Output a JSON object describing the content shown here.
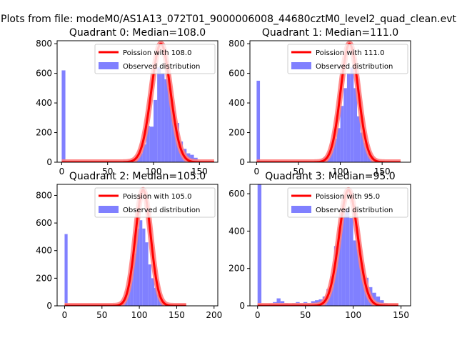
{
  "figure": {
    "suptitle": "Plots from file: modeM0/AS1A13_072T01_9000006008_44680cztM0_level2_quad_clean.evt"
  },
  "colors": {
    "histogram": "#8080ff",
    "poisson_line": "#ff0000",
    "poisson_glow": "#ff8080",
    "axis": "#000000"
  },
  "chart_data": [
    {
      "type": "bar",
      "title": "Quadrant 0: Median=108.0",
      "xlim": [
        -5,
        170
      ],
      "ylim": [
        0,
        820
      ],
      "xticks": [
        0,
        50,
        100,
        150
      ],
      "yticks": [
        0,
        200,
        400,
        600,
        800
      ],
      "legend": [
        "Poission with 108.0",
        "Observed distribution"
      ],
      "legend_position": "upper-right",
      "poisson_mean": 108.0,
      "poisson_peak": 800,
      "bins": [
        {
          "x0": 0,
          "x1": 4,
          "count": 620
        },
        {
          "x0": 68,
          "x1": 72,
          "count": 10
        },
        {
          "x0": 72,
          "x1": 76,
          "count": 15
        },
        {
          "x0": 76,
          "x1": 80,
          "count": 20
        },
        {
          "x0": 80,
          "x1": 84,
          "count": 30
        },
        {
          "x0": 84,
          "x1": 88,
          "count": 60
        },
        {
          "x0": 88,
          "x1": 92,
          "count": 120
        },
        {
          "x0": 92,
          "x1": 96,
          "count": 245
        },
        {
          "x0": 96,
          "x1": 100,
          "count": 240
        },
        {
          "x0": 100,
          "x1": 104,
          "count": 420
        },
        {
          "x0": 104,
          "x1": 108,
          "count": 640
        },
        {
          "x0": 108,
          "x1": 112,
          "count": 600
        },
        {
          "x0": 112,
          "x1": 116,
          "count": 560
        },
        {
          "x0": 116,
          "x1": 120,
          "count": 500
        },
        {
          "x0": 120,
          "x1": 124,
          "count": 350
        },
        {
          "x0": 124,
          "x1": 128,
          "count": 265
        },
        {
          "x0": 128,
          "x1": 132,
          "count": 140
        },
        {
          "x0": 132,
          "x1": 136,
          "count": 90
        },
        {
          "x0": 136,
          "x1": 140,
          "count": 60
        },
        {
          "x0": 140,
          "x1": 144,
          "count": 50
        },
        {
          "x0": 144,
          "x1": 148,
          "count": 30
        },
        {
          "x0": 148,
          "x1": 152,
          "count": 10
        }
      ]
    },
    {
      "type": "bar",
      "title": "Quadrant 1: Median=111.0",
      "xlim": [
        -8,
        184
      ],
      "ylim": [
        0,
        820
      ],
      "xticks": [
        0,
        50,
        100,
        150
      ],
      "yticks": [
        0,
        200,
        400,
        600,
        800
      ],
      "legend": [
        "Poission with 111.0",
        "Observed distribution"
      ],
      "legend_position": "upper-right",
      "poisson_mean": 111.0,
      "poisson_peak": 800,
      "bins": [
        {
          "x0": 0,
          "x1": 4,
          "count": 550
        },
        {
          "x0": 72,
          "x1": 76,
          "count": 10
        },
        {
          "x0": 76,
          "x1": 80,
          "count": 20
        },
        {
          "x0": 80,
          "x1": 84,
          "count": 35
        },
        {
          "x0": 84,
          "x1": 88,
          "count": 60
        },
        {
          "x0": 88,
          "x1": 92,
          "count": 90
        },
        {
          "x0": 92,
          "x1": 96,
          "count": 160
        },
        {
          "x0": 96,
          "x1": 100,
          "count": 230
        },
        {
          "x0": 100,
          "x1": 104,
          "count": 380
        },
        {
          "x0": 104,
          "x1": 108,
          "count": 500
        },
        {
          "x0": 108,
          "x1": 112,
          "count": 600
        },
        {
          "x0": 112,
          "x1": 116,
          "count": 640
        },
        {
          "x0": 116,
          "x1": 120,
          "count": 500
        },
        {
          "x0": 120,
          "x1": 124,
          "count": 310
        },
        {
          "x0": 124,
          "x1": 128,
          "count": 200
        },
        {
          "x0": 128,
          "x1": 132,
          "count": 130
        },
        {
          "x0": 132,
          "x1": 136,
          "count": 60
        },
        {
          "x0": 136,
          "x1": 140,
          "count": 40
        },
        {
          "x0": 140,
          "x1": 144,
          "count": 20
        },
        {
          "x0": 144,
          "x1": 148,
          "count": 10
        }
      ]
    },
    {
      "type": "bar",
      "title": "Quadrant 2: Median=105.0",
      "xlim": [
        -10,
        205
      ],
      "ylim": [
        0,
        880
      ],
      "xticks": [
        0,
        50,
        100,
        150,
        200
      ],
      "yticks": [
        0,
        200,
        400,
        600,
        800
      ],
      "legend": [
        "Poission with 105.0",
        "Observed distribution"
      ],
      "legend_position": "upper-right",
      "poisson_mean": 105.0,
      "poisson_peak": 840,
      "bins": [
        {
          "x0": 0,
          "x1": 4,
          "count": 520
        },
        {
          "x0": 72,
          "x1": 76,
          "count": 10
        },
        {
          "x0": 76,
          "x1": 80,
          "count": 30
        },
        {
          "x0": 80,
          "x1": 84,
          "count": 80
        },
        {
          "x0": 84,
          "x1": 88,
          "count": 150
        },
        {
          "x0": 88,
          "x1": 92,
          "count": 280
        },
        {
          "x0": 92,
          "x1": 96,
          "count": 380
        },
        {
          "x0": 96,
          "x1": 100,
          "count": 560
        },
        {
          "x0": 100,
          "x1": 104,
          "count": 620
        },
        {
          "x0": 104,
          "x1": 108,
          "count": 560
        },
        {
          "x0": 108,
          "x1": 112,
          "count": 460
        },
        {
          "x0": 112,
          "x1": 116,
          "count": 300
        },
        {
          "x0": 116,
          "x1": 120,
          "count": 200
        },
        {
          "x0": 120,
          "x1": 124,
          "count": 130
        },
        {
          "x0": 124,
          "x1": 128,
          "count": 80
        },
        {
          "x0": 128,
          "x1": 132,
          "count": 40
        },
        {
          "x0": 132,
          "x1": 136,
          "count": 20
        }
      ]
    },
    {
      "type": "bar",
      "title": "Quadrant 3: Median=95.0",
      "xlim": [
        -8,
        160
      ],
      "ylim": [
        0,
        650
      ],
      "xticks": [
        0,
        50,
        100,
        150
      ],
      "yticks": [
        0,
        200,
        400,
        600
      ],
      "legend": [
        "Poission with 95.0",
        "Observed distribution"
      ],
      "legend_position": "upper-right",
      "poisson_mean": 95.0,
      "poisson_peak": 620,
      "bins": [
        {
          "x0": 0,
          "x1": 4,
          "count": 650
        },
        {
          "x0": 12,
          "x1": 16,
          "count": 10
        },
        {
          "x0": 16,
          "x1": 20,
          "count": 20
        },
        {
          "x0": 20,
          "x1": 24,
          "count": 40
        },
        {
          "x0": 24,
          "x1": 28,
          "count": 25
        },
        {
          "x0": 28,
          "x1": 32,
          "count": 15
        },
        {
          "x0": 32,
          "x1": 36,
          "count": 10
        },
        {
          "x0": 36,
          "x1": 40,
          "count": 15
        },
        {
          "x0": 40,
          "x1": 44,
          "count": 20
        },
        {
          "x0": 44,
          "x1": 48,
          "count": 15
        },
        {
          "x0": 48,
          "x1": 52,
          "count": 20
        },
        {
          "x0": 52,
          "x1": 56,
          "count": 15
        },
        {
          "x0": 56,
          "x1": 60,
          "count": 25
        },
        {
          "x0": 60,
          "x1": 64,
          "count": 30
        },
        {
          "x0": 64,
          "x1": 68,
          "count": 35
        },
        {
          "x0": 68,
          "x1": 72,
          "count": 50
        },
        {
          "x0": 72,
          "x1": 76,
          "count": 90
        },
        {
          "x0": 76,
          "x1": 80,
          "count": 160
        },
        {
          "x0": 80,
          "x1": 84,
          "count": 320
        },
        {
          "x0": 84,
          "x1": 88,
          "count": 420
        },
        {
          "x0": 88,
          "x1": 92,
          "count": 560
        },
        {
          "x0": 92,
          "x1": 96,
          "count": 520
        },
        {
          "x0": 96,
          "x1": 100,
          "count": 470
        },
        {
          "x0": 100,
          "x1": 104,
          "count": 350
        },
        {
          "x0": 104,
          "x1": 108,
          "count": 300
        },
        {
          "x0": 108,
          "x1": 112,
          "count": 200
        },
        {
          "x0": 112,
          "x1": 116,
          "count": 150
        },
        {
          "x0": 116,
          "x1": 120,
          "count": 100
        },
        {
          "x0": 120,
          "x1": 124,
          "count": 70
        },
        {
          "x0": 124,
          "x1": 128,
          "count": 50
        },
        {
          "x0": 128,
          "x1": 132,
          "count": 30
        },
        {
          "x0": 132,
          "x1": 136,
          "count": 15
        }
      ]
    }
  ]
}
